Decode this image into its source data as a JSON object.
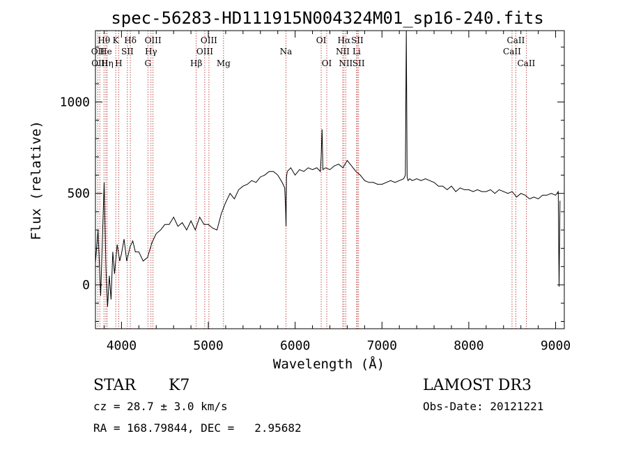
{
  "chart_data": {
    "type": "line",
    "title": "spec-56283-HD111915N004324M01_sp16-240.fits",
    "xlabel": "Wavelength (Å)",
    "ylabel": "Flux (relative)",
    "xlim": [
      3700,
      9100
    ],
    "ylim": [
      -240,
      1390
    ],
    "x_ticks": [
      4000,
      5000,
      6000,
      7000,
      8000,
      9000
    ],
    "y_ticks": [
      0,
      500,
      1000
    ],
    "grid": false,
    "series": [
      {
        "x": [
          3700,
          3730,
          3760,
          3790,
          3800,
          3820,
          3840,
          3860,
          3880,
          3900,
          3920,
          3950,
          3980,
          4000,
          4030,
          4060,
          4100,
          4130,
          4160,
          4200,
          4250,
          4300,
          4350,
          4400,
          4450,
          4500,
          4550,
          4600,
          4650,
          4700,
          4750,
          4800,
          4850,
          4900,
          4950,
          5000,
          5050,
          5100,
          5150,
          5200,
          5250,
          5300,
          5350,
          5400,
          5450,
          5500,
          5550,
          5600,
          5650,
          5700,
          5750,
          5800,
          5850,
          5880,
          5890,
          5895,
          5900,
          5910,
          5950,
          6000,
          6050,
          6100,
          6150,
          6200,
          6250,
          6290,
          6300,
          6310,
          6320,
          6350,
          6400,
          6450,
          6500,
          6550,
          6600,
          6650,
          6700,
          6750,
          6800,
          6850,
          6900,
          6950,
          7000,
          7050,
          7100,
          7150,
          7200,
          7250,
          7270,
          7280,
          7290,
          7300,
          7320,
          7350,
          7400,
          7450,
          7500,
          7550,
          7600,
          7650,
          7700,
          7750,
          7800,
          7850,
          7900,
          7950,
          8000,
          8050,
          8100,
          8150,
          8200,
          8250,
          8300,
          8350,
          8400,
          8450,
          8500,
          8550,
          8600,
          8650,
          8700,
          8750,
          8800,
          8850,
          8900,
          8950,
          9000,
          9030,
          9040,
          9050
        ],
        "y": [
          120,
          300,
          -60,
          400,
          560,
          100,
          -120,
          50,
          -80,
          180,
          60,
          220,
          130,
          170,
          250,
          130,
          210,
          240,
          180,
          180,
          130,
          150,
          230,
          280,
          300,
          330,
          330,
          370,
          320,
          340,
          300,
          350,
          300,
          370,
          330,
          330,
          310,
          300,
          390,
          450,
          500,
          470,
          520,
          540,
          550,
          570,
          560,
          590,
          600,
          620,
          620,
          600,
          560,
          530,
          420,
          320,
          590,
          620,
          640,
          600,
          630,
          620,
          640,
          630,
          640,
          620,
          700,
          850,
          630,
          640,
          630,
          650,
          660,
          640,
          680,
          650,
          620,
          600,
          570,
          560,
          560,
          550,
          550,
          560,
          570,
          560,
          570,
          580,
          600,
          1390,
          590,
          570,
          580,
          570,
          580,
          570,
          580,
          570,
          560,
          540,
          540,
          520,
          540,
          510,
          530,
          520,
          520,
          510,
          520,
          510,
          510,
          520,
          500,
          520,
          510,
          500,
          510,
          480,
          500,
          490,
          470,
          480,
          470,
          490,
          490,
          500,
          490,
          510,
          -10,
          460
        ]
      }
    ],
    "spectral_lines": [
      {
        "label": "Hθ",
        "wavelength": 3798,
        "row": 1
      },
      {
        "label": "OII",
        "wavelength": 3727,
        "row": 2
      },
      {
        "label": "OIII",
        "wavelength": 3750,
        "row": 3
      },
      {
        "label": "He",
        "wavelength": 3820,
        "row": 2
      },
      {
        "label": "Hη",
        "wavelength": 3835,
        "row": 3
      },
      {
        "label": "K",
        "wavelength": 3934,
        "row": 1
      },
      {
        "label": "SII",
        "wavelength": 4068,
        "row": 2
      },
      {
        "label": "H",
        "wavelength": 3968,
        "row": 3
      },
      {
        "label": "Hδ",
        "wavelength": 4102,
        "row": 1
      },
      {
        "label": "OIII",
        "wavelength": 4363,
        "row": 1
      },
      {
        "label": "Hγ",
        "wavelength": 4340,
        "row": 2
      },
      {
        "label": "G",
        "wavelength": 4304,
        "row": 3
      },
      {
        "label": "OIII",
        "wavelength": 5007,
        "row": 1
      },
      {
        "label": "OIII",
        "wavelength": 4959,
        "row": 2
      },
      {
        "label": "Hβ",
        "wavelength": 4861,
        "row": 3
      },
      {
        "label": "Mg",
        "wavelength": 5175,
        "row": 3
      },
      {
        "label": "Na",
        "wavelength": 5894,
        "row": 2
      },
      {
        "label": "OI",
        "wavelength": 6300,
        "row": 1
      },
      {
        "label": "OI",
        "wavelength": 6364,
        "row": 3
      },
      {
        "label": "Hα",
        "wavelength": 6563,
        "row": 1
      },
      {
        "label": "SII",
        "wavelength": 6716,
        "row": 1
      },
      {
        "label": "NII",
        "wavelength": 6548,
        "row": 2
      },
      {
        "label": "Li",
        "wavelength": 6708,
        "row": 2
      },
      {
        "label": "NII",
        "wavelength": 6583,
        "row": 3
      },
      {
        "label": "SII",
        "wavelength": 6731,
        "row": 3
      },
      {
        "label": "CaII",
        "wavelength": 8542,
        "row": 1
      },
      {
        "label": "CaII",
        "wavelength": 8498,
        "row": 2
      },
      {
        "label": "CaII",
        "wavelength": 8662,
        "row": 3
      }
    ]
  },
  "info": {
    "object_class": "STAR",
    "subclass": "K7",
    "cz": "cz = 28.7 ± 3.0 km/s",
    "coords": "RA = 168.79844, DEC =   2.95682",
    "survey": "LAMOST DR3",
    "obs_date": "Obs-Date: 20121221"
  },
  "colors": {
    "line_markers": "#b22222",
    "spectrum": "#000000"
  }
}
